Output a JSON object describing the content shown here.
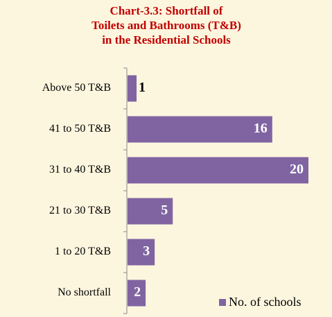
{
  "chart_data": {
    "type": "bar",
    "orientation": "horizontal",
    "title": [
      "Chart-3.3: Shortfall of",
      "Toilets and Bathrooms (T&B)",
      "in the Residential Schools"
    ],
    "categories": [
      "Above 50 T&B",
      "41 to 50 T&B",
      "31 to 40 T&B",
      "21 to 30 T&B",
      "1 to 20 T&B",
      "No shortfall"
    ],
    "series": [
      {
        "name": "No. of schools",
        "color": "#8064a2",
        "values": [
          1,
          16,
          20,
          5,
          3,
          2
        ]
      }
    ],
    "legend": "lower right"
  }
}
